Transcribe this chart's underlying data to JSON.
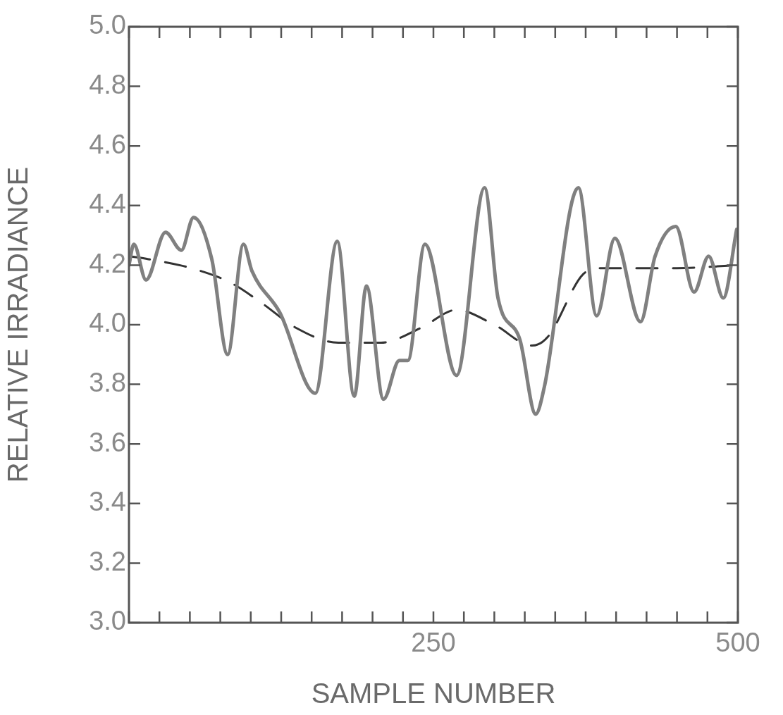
{
  "chart_data": {
    "type": "line",
    "xlabel": "SAMPLE NUMBER",
    "ylabel": "RELATIVE IRRADIANCE",
    "xlim": [
      0,
      500
    ],
    "ylim": [
      3.0,
      5.0
    ],
    "xticks": [
      {
        "value": 0,
        "label": null
      },
      {
        "value": 25,
        "label": null
      },
      {
        "value": 50,
        "label": null
      },
      {
        "value": 75,
        "label": null
      },
      {
        "value": 100,
        "label": null
      },
      {
        "value": 125,
        "label": null
      },
      {
        "value": 150,
        "label": null
      },
      {
        "value": 175,
        "label": null
      },
      {
        "value": 200,
        "label": null
      },
      {
        "value": 225,
        "label": null
      },
      250,
      {
        "value": 275,
        "label": null
      },
      {
        "value": 300,
        "label": null
      },
      {
        "value": 325,
        "label": null
      },
      {
        "value": 350,
        "label": null
      },
      {
        "value": 375,
        "label": null
      },
      {
        "value": 400,
        "label": null
      },
      {
        "value": 425,
        "label": null
      },
      {
        "value": 450,
        "label": null
      },
      {
        "value": 475,
        "label": null
      },
      500
    ],
    "yticks": [
      {
        "value": 3.0,
        "label": "3.0"
      },
      {
        "value": 3.2,
        "label": "3.2"
      },
      {
        "value": 3.4,
        "label": "3.4"
      },
      {
        "value": 3.6,
        "label": "3.6"
      },
      {
        "value": 3.8,
        "label": "3.8"
      },
      {
        "value": 4.0,
        "label": "4.0"
      },
      {
        "value": 4.2,
        "label": "4.2"
      },
      {
        "value": 4.4,
        "label": "4.4"
      },
      {
        "value": 4.6,
        "label": "4.6"
      },
      {
        "value": 4.8,
        "label": "4.8"
      },
      {
        "value": 5.0,
        "label": "5.0"
      }
    ],
    "grid": false,
    "legend": false,
    "marker": "none",
    "series": [
      {
        "color": "#808080",
        "line_style": "solid",
        "x": [
          0,
          4,
          14,
          30,
          43,
          53,
          68,
          81,
          94,
          101,
          124,
          153,
          171,
          185,
          195,
          209,
          222,
          229,
          243,
          269,
          292,
          303,
          321,
          334,
          341,
          369,
          384,
          399,
          420,
          432,
          449,
          464,
          476,
          488,
          499
        ],
        "values": [
          4.2,
          4.27,
          4.15,
          4.31,
          4.25,
          4.36,
          4.22,
          3.9,
          4.27,
          4.18,
          4.04,
          3.77,
          4.28,
          3.76,
          4.13,
          3.75,
          3.88,
          3.88,
          4.27,
          3.83,
          4.46,
          4.09,
          3.95,
          3.7,
          3.79,
          4.46,
          4.03,
          4.29,
          4.01,
          4.23,
          4.33,
          4.11,
          4.23,
          4.09,
          4.32
        ]
      },
      {
        "color": "#333333",
        "line_style": "dashed",
        "x": [
          0,
          16,
          51,
          84,
          110,
          137,
          172,
          207,
          240,
          269,
          300,
          331,
          344,
          373,
          388,
          450,
          500
        ],
        "values": [
          4.23,
          4.22,
          4.19,
          4.14,
          4.07,
          3.99,
          3.94,
          3.94,
          3.99,
          4.05,
          4.0,
          3.93,
          3.96,
          4.17,
          4.19,
          4.19,
          4.2
        ]
      }
    ]
  }
}
